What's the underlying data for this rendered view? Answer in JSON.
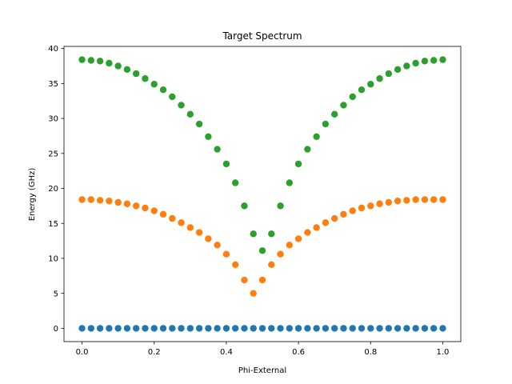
{
  "chart_data": {
    "type": "scatter",
    "title": "Target Spectrum",
    "xlabel": "Phi-External",
    "ylabel": "Energy (GHz)",
    "xlim": [
      -0.05,
      1.05
    ],
    "ylim": [
      -1.9,
      40.3
    ],
    "xticks": [
      0.0,
      0.2,
      0.4,
      0.6,
      0.8,
      1.0
    ],
    "xtick_labels": [
      "0.0",
      "0.2",
      "0.4",
      "0.6",
      "0.8",
      "1.0"
    ],
    "yticks": [
      0,
      5,
      10,
      15,
      20,
      25,
      30,
      35,
      40
    ],
    "ytick_labels": [
      "0",
      "5",
      "10",
      "15",
      "20",
      "25",
      "30",
      "35",
      "40"
    ],
    "grid": false,
    "legend": "none",
    "x": [
      0.0,
      0.025,
      0.05,
      0.075,
      0.1,
      0.125,
      0.15,
      0.175,
      0.2,
      0.225,
      0.25,
      0.275,
      0.3,
      0.325,
      0.35,
      0.375,
      0.4,
      0.425,
      0.45,
      0.475,
      0.5,
      0.525,
      0.55,
      0.575,
      0.6,
      0.625,
      0.65,
      0.675,
      0.7,
      0.725,
      0.75,
      0.775,
      0.8,
      0.825,
      0.85,
      0.875,
      0.9,
      0.925,
      0.95,
      0.975,
      1.0
    ],
    "series": [
      {
        "color": "#1f77b4",
        "values": [
          0,
          0,
          0,
          0,
          0,
          0,
          0,
          0,
          0,
          0,
          0,
          0,
          0,
          0,
          0,
          0,
          0,
          0,
          0,
          0,
          0,
          0,
          0,
          0,
          0,
          0,
          0,
          0,
          0,
          0,
          0,
          0,
          0,
          0,
          0,
          0,
          0,
          0,
          0,
          0,
          0
        ]
      },
      {
        "color": "#ff7f0e",
        "values": [
          18.4,
          18.4,
          18.3,
          18.2,
          18.0,
          17.8,
          17.5,
          17.2,
          16.8,
          16.3,
          15.7,
          15.1,
          14.4,
          13.7,
          12.8,
          11.9,
          10.6,
          9.1,
          6.9,
          5.0,
          6.9,
          9.1,
          10.6,
          11.9,
          12.8,
          13.7,
          14.4,
          15.1,
          15.7,
          16.3,
          16.8,
          17.2,
          17.5,
          17.8,
          18.0,
          18.2,
          18.3,
          18.4,
          18.4,
          18.4,
          18.4
        ]
      },
      {
        "color": "#2ca02c",
        "values": [
          38.4,
          38.3,
          38.2,
          37.9,
          37.5,
          37.0,
          36.4,
          35.7,
          34.9,
          34.1,
          33.1,
          31.9,
          30.6,
          29.2,
          27.4,
          25.6,
          23.5,
          20.8,
          17.5,
          13.5,
          11.1,
          13.5,
          17.5,
          20.8,
          23.5,
          25.6,
          27.4,
          29.2,
          30.6,
          31.9,
          33.1,
          34.1,
          34.9,
          35.7,
          36.4,
          37.0,
          37.5,
          37.9,
          38.2,
          38.3,
          38.4
        ]
      }
    ]
  }
}
